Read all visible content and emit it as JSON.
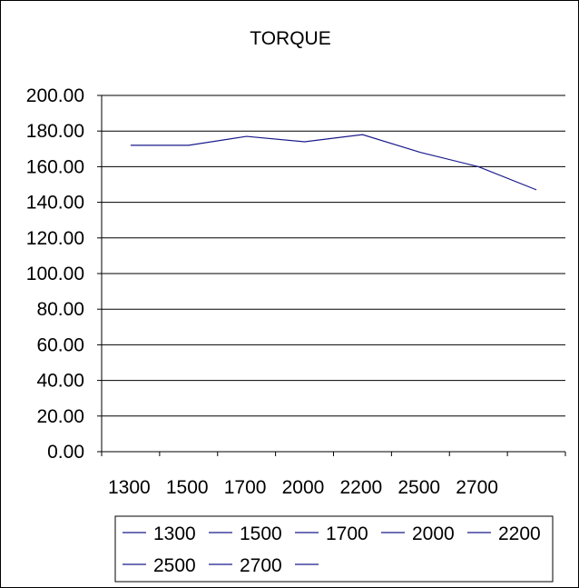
{
  "chart_data": {
    "type": "line",
    "title": "TORQUE",
    "xlabel": "",
    "ylabel": "",
    "categories": [
      "1300",
      "1500",
      "1700",
      "2000",
      "2200",
      "2500",
      "2700",
      ""
    ],
    "series": [
      {
        "name": "",
        "values": [
          172,
          172,
          177,
          174,
          178,
          168,
          160,
          147
        ]
      }
    ],
    "ylim": [
      0,
      200
    ],
    "yticks": [
      "0.00",
      "20.00",
      "40.00",
      "60.00",
      "80.00",
      "100.00",
      "120.00",
      "140.00",
      "160.00",
      "180.00",
      "200.00"
    ],
    "grid": true,
    "legend": {
      "position": "bottom",
      "entries": [
        "1300",
        "1500",
        "1700",
        "2000",
        "2200",
        "2500",
        "2700",
        ""
      ]
    },
    "colors": {
      "series": "#1a1a8c",
      "axis": "#000000",
      "background": "#ffffff"
    }
  }
}
